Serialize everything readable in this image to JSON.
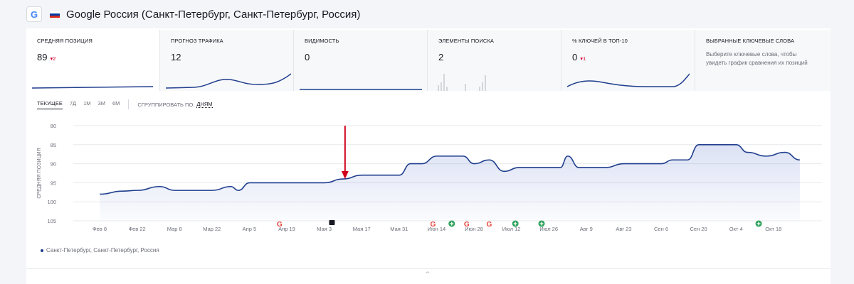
{
  "header": {
    "engine_icon": "G",
    "title": "Google Россия (Санкт-Петербург, Санкт-Петербург, Россия)",
    "flag_colors": [
      "#ffffff",
      "#0039a6",
      "#d52b1e"
    ]
  },
  "cards": [
    {
      "label": "СРЕДНЯЯ ПОЗИЦИЯ",
      "value": "89",
      "delta": "▾2"
    },
    {
      "label": "ПРОГНОЗ ТРАФИКА",
      "value": "12",
      "delta": ""
    },
    {
      "label": "ВИДИМОСТЬ",
      "value": "0",
      "delta": ""
    },
    {
      "label": "ЭЛЕМЕНТЫ ПОИСКА",
      "value": "2",
      "delta": ""
    },
    {
      "label": "% КЛЮЧЕЙ В ТОП-10",
      "value": "0",
      "delta": "▾1"
    },
    {
      "label": "ВЫБРАННЫЕ КЛЮЧЕВЫЕ СЛОВА",
      "hint": "Выберите ключевые слова, чтобы увидеть график сравнения их позиций"
    }
  ],
  "tabs": {
    "items": [
      "ТЕКУЩЕЕ",
      "7Д",
      "1М",
      "3М",
      "6М"
    ],
    "group_label": "СГРУППИРОВАТЬ ПО:",
    "group_value": "ДНЯМ"
  },
  "colors": {
    "line": "#1f3e8d",
    "arrow": "#d0021b",
    "google_marker": "#e8453c",
    "note_marker": "#171a22",
    "plus_marker": "#2ba15a"
  },
  "chart_data": {
    "type": "area",
    "ylabel": "СРЕДНЯЯ ПОЗИЦИЯ",
    "ylim": [
      80,
      105
    ],
    "y_inverted": true,
    "y_ticks": [
      80,
      85,
      90,
      95,
      100,
      105
    ],
    "x_ticks": [
      "Фев 8",
      "Фев 22",
      "Мар 8",
      "Мар 22",
      "Апр 5",
      "Апр 19",
      "Мая 3",
      "Мая 17",
      "Мая 31",
      "Июн 14",
      "Июн 28",
      "Июл 12",
      "Июл 26",
      "Авг 9",
      "Авг 23",
      "Сен 6",
      "Сен 20",
      "Окт 4",
      "Окт 18"
    ],
    "series": [
      {
        "name": "Санкт-Петербург, Санкт-Петербург, Россия",
        "x": [
          0,
          0.6,
          1,
          1.6,
          2,
          3,
          3.5,
          3.7,
          4,
          4.7,
          5,
          6,
          6.5,
          7,
          8,
          8.3,
          8.6,
          9,
          9.3,
          9.7,
          10,
          10.4,
          10.8,
          11.2,
          12,
          12.3,
          12.5,
          12.8,
          13.5,
          14,
          15,
          15.3,
          15.5,
          15.7,
          16,
          17,
          17.3,
          17.8,
          18.3,
          18.7
        ],
        "values": [
          98,
          97.2,
          97,
          96,
          97,
          97,
          96,
          97,
          95,
          95,
          95,
          95,
          94,
          93,
          93,
          90,
          90,
          88,
          88,
          88,
          90,
          89,
          92,
          91,
          91,
          91,
          88,
          91,
          91,
          90,
          90,
          89,
          89,
          89,
          85,
          85,
          87,
          88,
          87,
          89
        ]
      }
    ],
    "annotation_arrow_at": 6.55,
    "markers": [
      {
        "type": "google",
        "x": 4.8
      },
      {
        "type": "note",
        "x": 6.2
      },
      {
        "type": "google",
        "x": 8.9
      },
      {
        "type": "plus",
        "x": 9.4
      },
      {
        "type": "google",
        "x": 9.8
      },
      {
        "type": "google",
        "x": 10.4
      },
      {
        "type": "plus",
        "x": 11.1
      },
      {
        "type": "plus",
        "x": 11.8
      },
      {
        "type": "plus",
        "x": 17.6
      }
    ]
  },
  "legend": {
    "text": "Санкт-Петербург, Санкт-Петербург, Россия"
  },
  "footer": {
    "collapse_icon": "^"
  }
}
